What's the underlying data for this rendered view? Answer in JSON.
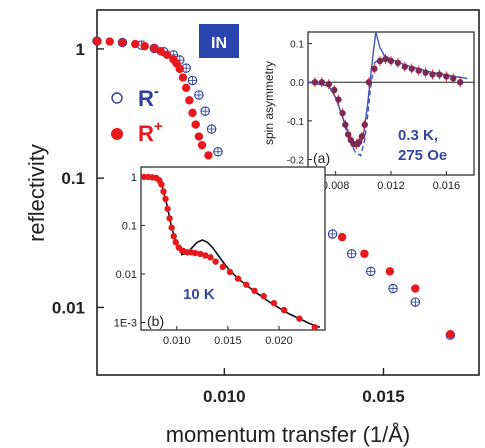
{
  "colors": {
    "red": "#e8191c",
    "blue": "#2f3f9c",
    "badge_bg": "#2a45b0",
    "badge_text": "#ffffff",
    "axis": "#222222",
    "label_blue": "#34479a",
    "sim_line": "#3f54b8",
    "fit_black": "#111111"
  },
  "chart_data": [
    {
      "id": "main",
      "type": "scatter",
      "title": "",
      "xlabel": "momentum transfer (1/Å)",
      "ylabel": "reflectivity",
      "xlim": [
        0.006,
        0.018
      ],
      "ylim": [
        0.003,
        2.0
      ],
      "y_scale": "log",
      "x_ticks": [
        0.01,
        0.015
      ],
      "x_tick_labels": [
        "0.010",
        "0.015"
      ],
      "y_ticks": [
        1,
        0.1,
        0.01
      ],
      "y_tick_labels": [
        "1",
        "0.1",
        "0.01"
      ],
      "badge": "IN",
      "legend": {
        "position": "left",
        "entries": [
          {
            "label": "R",
            "sup": "-",
            "marker": "open-circle-plus",
            "color": "blue"
          },
          {
            "label": "R",
            "sup": "+",
            "marker": "filled-circle",
            "color": "red"
          }
        ]
      },
      "series": [
        {
          "name": "R-",
          "marker": "open",
          "x": [
            0.006,
            0.0068,
            0.0074,
            0.0078,
            0.0081,
            0.0084,
            0.0086,
            0.0088,
            0.009,
            0.0092,
            0.0094,
            0.0096,
            0.0098,
            0.01,
            0.0103,
            0.0106,
            0.011,
            0.0116,
            0.0122,
            0.0128,
            0.0134,
            0.014,
            0.0146,
            0.0153,
            0.016,
            0.0171
          ],
          "y": [
            1.15,
            1.12,
            1.07,
            1.01,
            0.95,
            0.9,
            0.82,
            0.71,
            0.57,
            0.44,
            0.33,
            0.24,
            0.16,
            0.11,
            0.075,
            0.06,
            0.053,
            0.046,
            0.044,
            0.044,
            0.037,
            0.026,
            0.019,
            0.014,
            0.011,
            0.0061
          ]
        },
        {
          "name": "R+",
          "marker": "filled",
          "x": [
            0.006,
            0.0064,
            0.0068,
            0.0072,
            0.0075,
            0.0078,
            0.008,
            0.0082,
            0.0084,
            0.0085,
            0.0086,
            0.0087,
            0.0088,
            0.0089,
            0.009,
            0.0091,
            0.0092,
            0.0093,
            0.0095,
            0.0097,
            0.0099,
            0.0101,
            0.0104,
            0.0108,
            0.0112,
            0.0118,
            0.0124,
            0.013,
            0.0137,
            0.0144,
            0.0152,
            0.016,
            0.0171
          ],
          "y": [
            1.15,
            1.14,
            1.12,
            1.09,
            1.05,
            1.01,
            0.96,
            0.9,
            0.83,
            0.77,
            0.7,
            0.6,
            0.5,
            0.4,
            0.32,
            0.26,
            0.21,
            0.18,
            0.15,
            0.11,
            0.088,
            0.074,
            0.063,
            0.055,
            0.048,
            0.046,
            0.044,
            0.043,
            0.035,
            0.026,
            0.019,
            0.014,
            0.0062
          ]
        }
      ]
    },
    {
      "id": "inset-a",
      "type": "scatter",
      "panel_label": "(a)",
      "ylabel": "spin asymmetry",
      "annotation": [
        "0.3 K,",
        "275 Oe"
      ],
      "xlim": [
        0.006,
        0.018
      ],
      "ylim": [
        -0.24,
        0.13
      ],
      "x_ticks": [
        0.008,
        0.012,
        0.016
      ],
      "x_tick_labels": [
        "0.008",
        "0.012",
        "0.016"
      ],
      "y_ticks": [
        0.1,
        0.0,
        -0.1,
        -0.2
      ],
      "y_tick_labels": [
        "0.1",
        "0.0",
        "-0.1",
        "-0.2"
      ],
      "points": {
        "x": [
          0.0065,
          0.007,
          0.0075,
          0.0079,
          0.0082,
          0.0085,
          0.0087,
          0.0089,
          0.0091,
          0.0093,
          0.0095,
          0.0097,
          0.0099,
          0.0101,
          0.0104,
          0.0108,
          0.0112,
          0.0116,
          0.012,
          0.0125,
          0.013,
          0.0135,
          0.014,
          0.0145,
          0.015,
          0.0155,
          0.016,
          0.0165,
          0.017
        ],
        "y": [
          0.0,
          0.0,
          -0.005,
          -0.02,
          -0.045,
          -0.08,
          -0.11,
          -0.135,
          -0.15,
          -0.16,
          -0.16,
          -0.155,
          -0.14,
          -0.11,
          0.0,
          0.035,
          0.055,
          0.06,
          0.055,
          0.05,
          0.04,
          0.035,
          0.03,
          0.025,
          0.02,
          0.02,
          0.015,
          0.01,
          0.0
        ]
      },
      "curves": [
        {
          "style": "solid",
          "x": [
            0.006,
            0.0075,
            0.008,
            0.0085,
            0.009,
            0.0094,
            0.0097,
            0.01,
            0.0103,
            0.0106,
            0.0109,
            0.0112,
            0.0115,
            0.012,
            0.013,
            0.014,
            0.015,
            0.016,
            0.0175
          ],
          "y": [
            0.0,
            -0.01,
            -0.04,
            -0.09,
            -0.14,
            -0.165,
            -0.165,
            -0.14,
            -0.06,
            0.04,
            0.13,
            0.09,
            0.07,
            0.06,
            0.045,
            0.035,
            0.025,
            0.018,
            0.01
          ]
        },
        {
          "style": "dashed",
          "x": [
            0.006,
            0.0075,
            0.008,
            0.0085,
            0.009,
            0.0094,
            0.0098,
            0.0101,
            0.0103,
            0.0105,
            0.0108,
            0.0112,
            0.012,
            0.013,
            0.015,
            0.0175
          ],
          "y": [
            0.0,
            -0.01,
            -0.04,
            -0.09,
            -0.15,
            -0.18,
            -0.19,
            -0.15,
            -0.09,
            -0.02,
            0.05,
            0.06,
            0.055,
            0.045,
            0.025,
            0.01
          ]
        }
      ]
    },
    {
      "id": "inset-b",
      "type": "scatter",
      "panel_label": "(b)",
      "annotation": "10 K",
      "xlim": [
        0.0065,
        0.0245
      ],
      "ylim": [
        0.0007,
        1.6
      ],
      "y_scale": "log",
      "x_ticks": [
        0.01,
        0.015,
        0.02
      ],
      "x_tick_labels": [
        "0.010",
        "0.015",
        "0.020"
      ],
      "y_ticks": [
        1,
        0.1,
        0.01,
        0.001
      ],
      "y_tick_labels": [
        "1",
        "0.1",
        "0.01",
        "1E-3"
      ],
      "points": {
        "x": [
          0.0068,
          0.0072,
          0.0076,
          0.008,
          0.0083,
          0.0085,
          0.0087,
          0.0089,
          0.0091,
          0.0093,
          0.0095,
          0.0097,
          0.0099,
          0.0102,
          0.0106,
          0.011,
          0.0114,
          0.0118,
          0.0123,
          0.0128,
          0.0133,
          0.0138,
          0.0145,
          0.0152,
          0.016,
          0.0168,
          0.0176,
          0.0185,
          0.0195,
          0.0205,
          0.022,
          0.0235
        ],
        "y": [
          1.0,
          1.0,
          0.98,
          0.95,
          0.85,
          0.7,
          0.5,
          0.35,
          0.22,
          0.14,
          0.09,
          0.06,
          0.045,
          0.035,
          0.03,
          0.028,
          0.028,
          0.027,
          0.026,
          0.024,
          0.022,
          0.018,
          0.014,
          0.011,
          0.008,
          0.006,
          0.0045,
          0.0035,
          0.0025,
          0.0018,
          0.0012,
          0.0008
        ]
      },
      "curve": {
        "x": [
          0.0065,
          0.0075,
          0.008,
          0.0085,
          0.009,
          0.0095,
          0.01,
          0.0105,
          0.011,
          0.0115,
          0.012,
          0.0125,
          0.013,
          0.0135,
          0.014,
          0.0145,
          0.015,
          0.016,
          0.017,
          0.018,
          0.019,
          0.02,
          0.021,
          0.022,
          0.023,
          0.024
        ],
        "y": [
          1.0,
          1.0,
          0.98,
          0.75,
          0.28,
          0.09,
          0.04,
          0.025,
          0.027,
          0.035,
          0.045,
          0.05,
          0.045,
          0.035,
          0.025,
          0.018,
          0.013,
          0.008,
          0.0055,
          0.0038,
          0.0027,
          0.002,
          0.0015,
          0.0012,
          0.00095,
          0.0008
        ]
      }
    }
  ]
}
